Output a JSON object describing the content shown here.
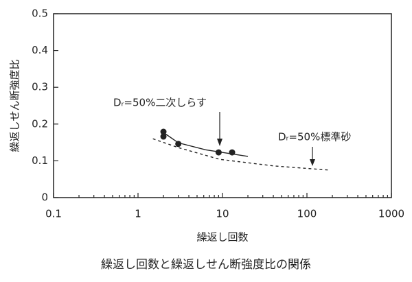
{
  "chart_data": {
    "type": "scatter",
    "x_label": "繰返し回数",
    "y_label": "繰返しせん断強度比",
    "caption": "繰返し回数と繰返しせん断強度比の関係",
    "xscale": "log",
    "xlim": [
      0.1,
      1000
    ],
    "xticks": [
      0.1,
      1,
      10,
      100,
      1000
    ],
    "ylim": [
      0,
      0.5
    ],
    "yticks": [
      0,
      0.1,
      0.2,
      0.3,
      0.4,
      0.5
    ],
    "series": [
      {
        "mode": "markers",
        "color": "#222",
        "x": [
          2,
          2,
          3,
          9,
          13
        ],
        "values": [
          0.179,
          0.166,
          0.146,
          0.123,
          0.123
        ]
      },
      {
        "mode": "solid",
        "color": "#222",
        "x": [
          2,
          3,
          6.3,
          20
        ],
        "values": [
          0.177,
          0.149,
          0.13,
          0.112
        ]
      },
      {
        "mode": "dashed",
        "color": "#222",
        "x": [
          1.5,
          3,
          9.3,
          41,
          180
        ],
        "values": [
          0.16,
          0.136,
          0.104,
          0.086,
          0.075
        ]
      }
    ],
    "annotations": [
      {
        "text": "Dᵣ=50%二次しらす"
      },
      {
        "text": "Dᵣ=50%標準砂"
      }
    ]
  }
}
